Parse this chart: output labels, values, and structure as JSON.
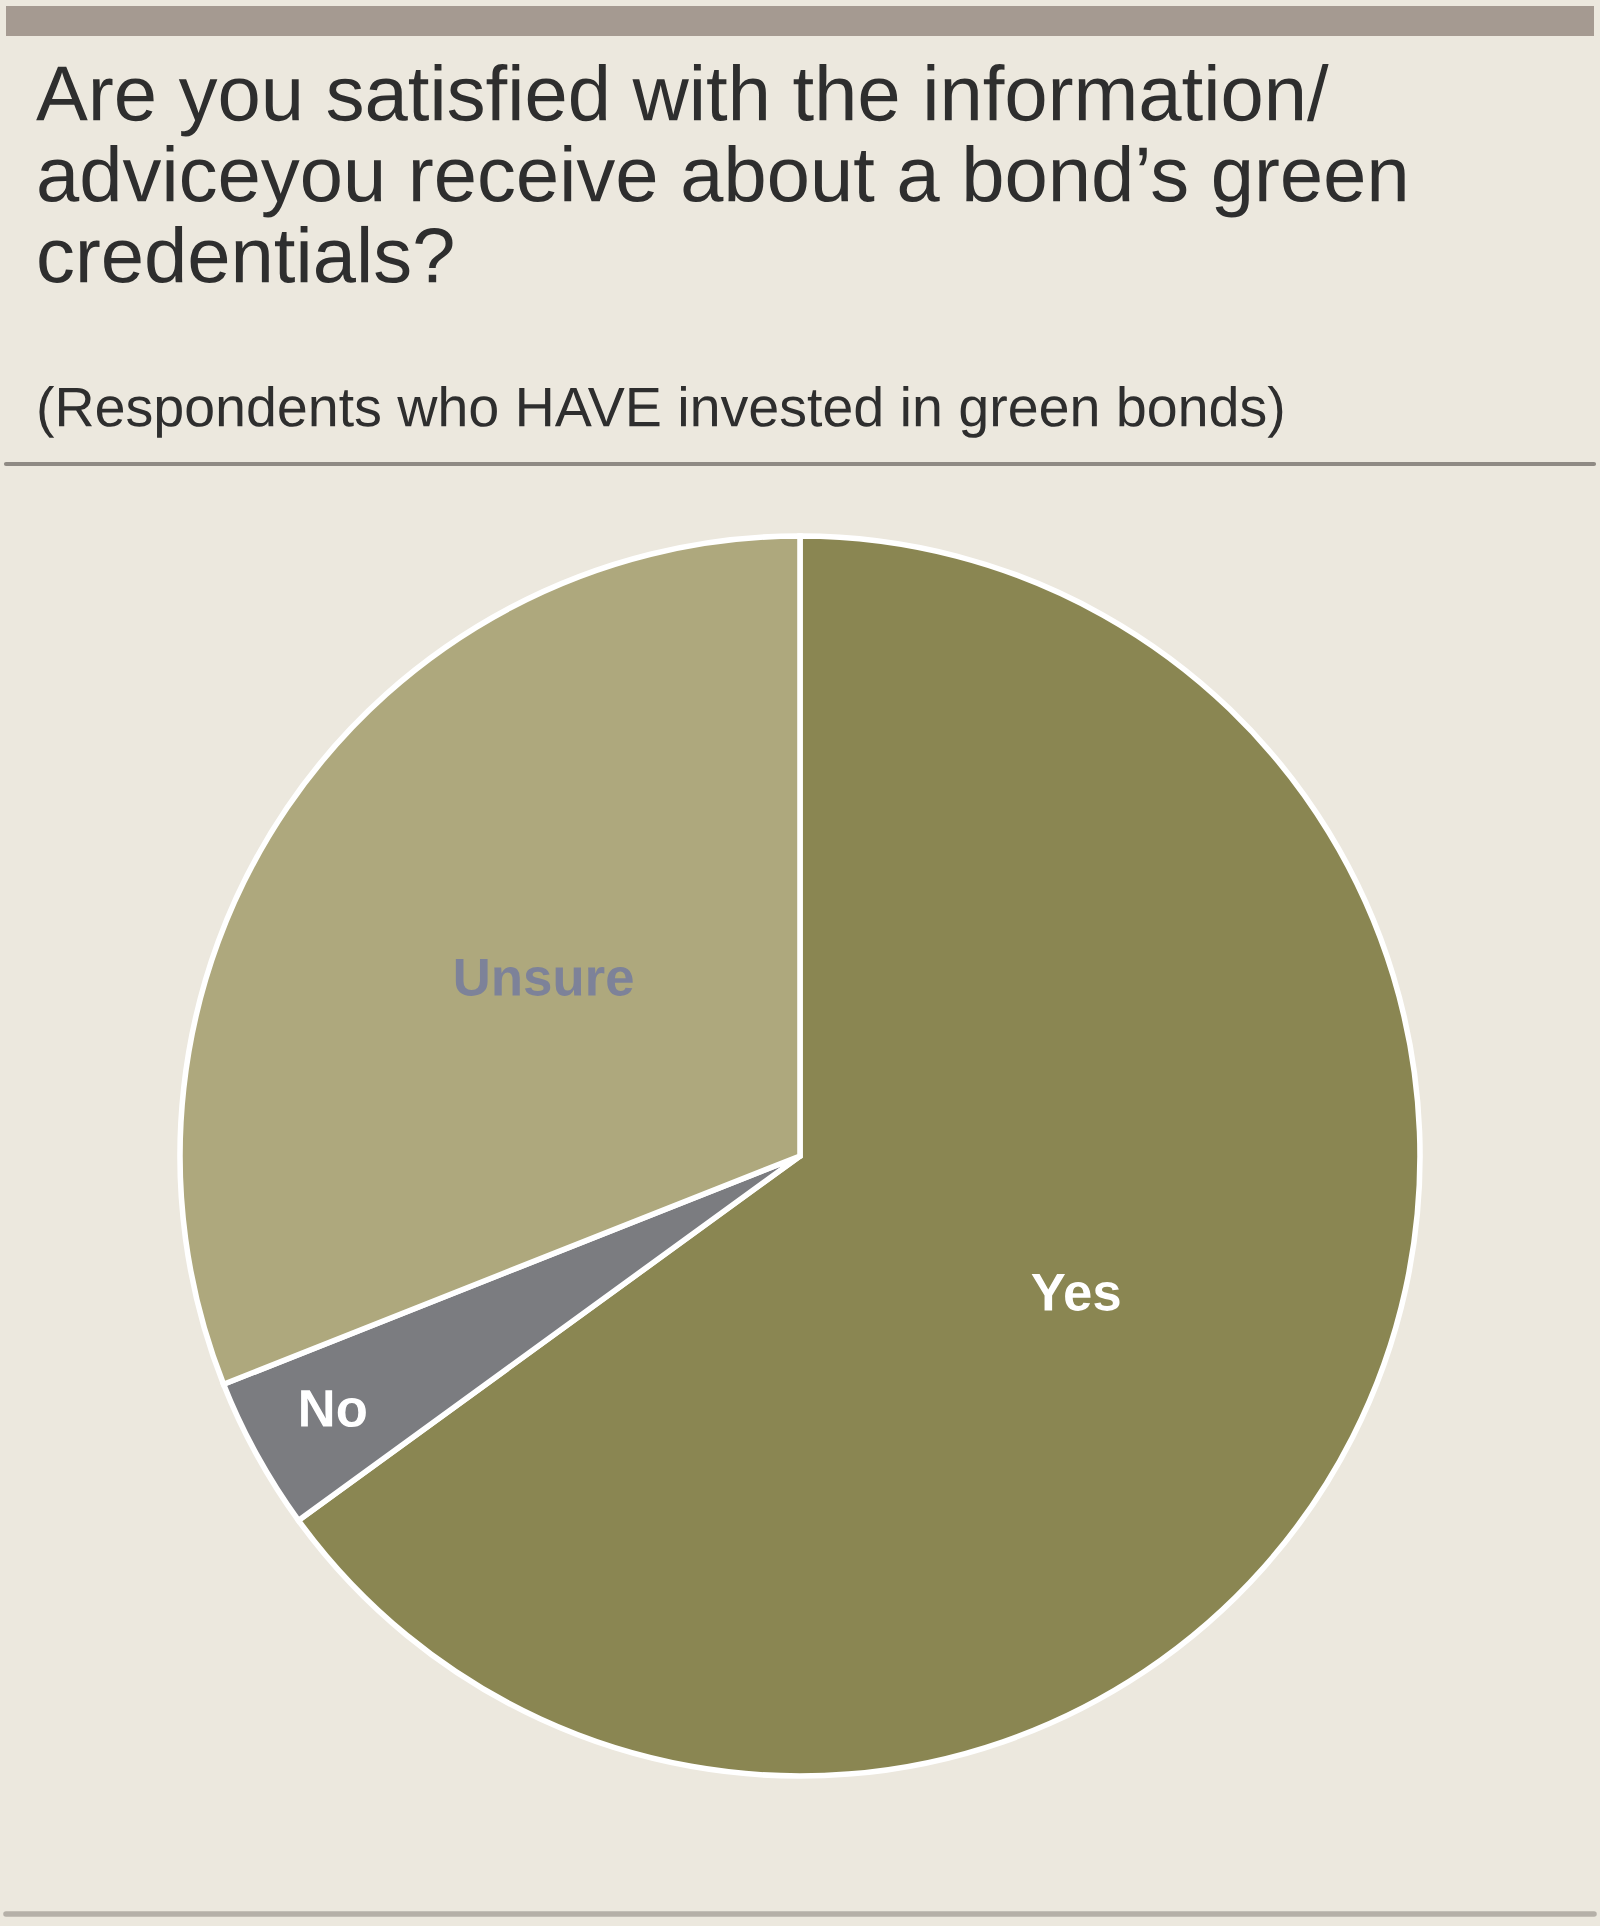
{
  "chart_data": {
    "type": "pie",
    "title": "Are you satisfied with the information/ adviceyou receive about a bond’s green credentials?",
    "subtitle": "(Respondents who HAVE invested in green bonds)",
    "categories": [
      "Yes",
      "No",
      "Unsure"
    ],
    "values": [
      65,
      4,
      31
    ],
    "colors": [
      "#8a8652",
      "#7b7c80",
      "#aea87d"
    ]
  }
}
